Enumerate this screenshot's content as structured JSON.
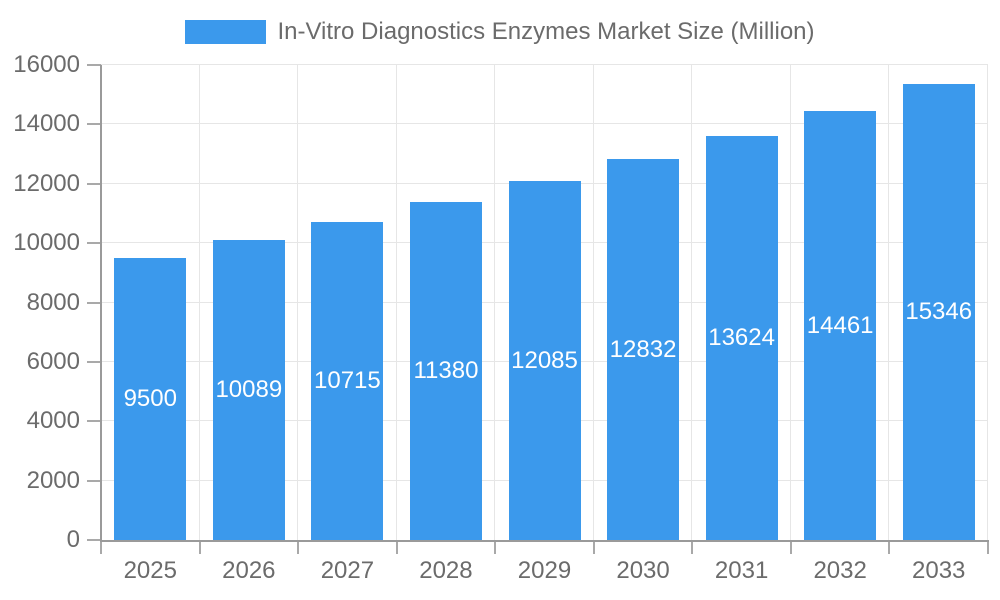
{
  "chart_data": {
    "type": "bar",
    "title": "In-Vitro Diagnostics Enzymes Market Size (Million)",
    "legend_position": "top",
    "categories": [
      "2025",
      "2026",
      "2027",
      "2028",
      "2029",
      "2030",
      "2031",
      "2032",
      "2033"
    ],
    "values": [
      9500,
      10089,
      10715,
      11380,
      12085,
      12832,
      13624,
      14461,
      15346
    ],
    "series": [
      {
        "name": "In-Vitro Diagnostics Enzymes Market Size (Million)",
        "values": [
          9500,
          10089,
          10715,
          11380,
          12085,
          12832,
          13624,
          14461,
          15346
        ]
      }
    ],
    "xlabel": "",
    "ylabel": "",
    "ylim": [
      0,
      16000
    ],
    "yticks": [
      0,
      2000,
      4000,
      6000,
      8000,
      10000,
      12000,
      14000,
      16000
    ],
    "grid": true,
    "value_labels_shown": true,
    "colors": {
      "bar": "#3B99EC",
      "bar_value_label": "#FFFFFF",
      "axis_text": "#6B6B6B",
      "axis_line": "#9A9A9A",
      "gridline": "#E6E6E6",
      "tick_mark": "#A9A9A9",
      "background": "#FFFFFF"
    }
  }
}
